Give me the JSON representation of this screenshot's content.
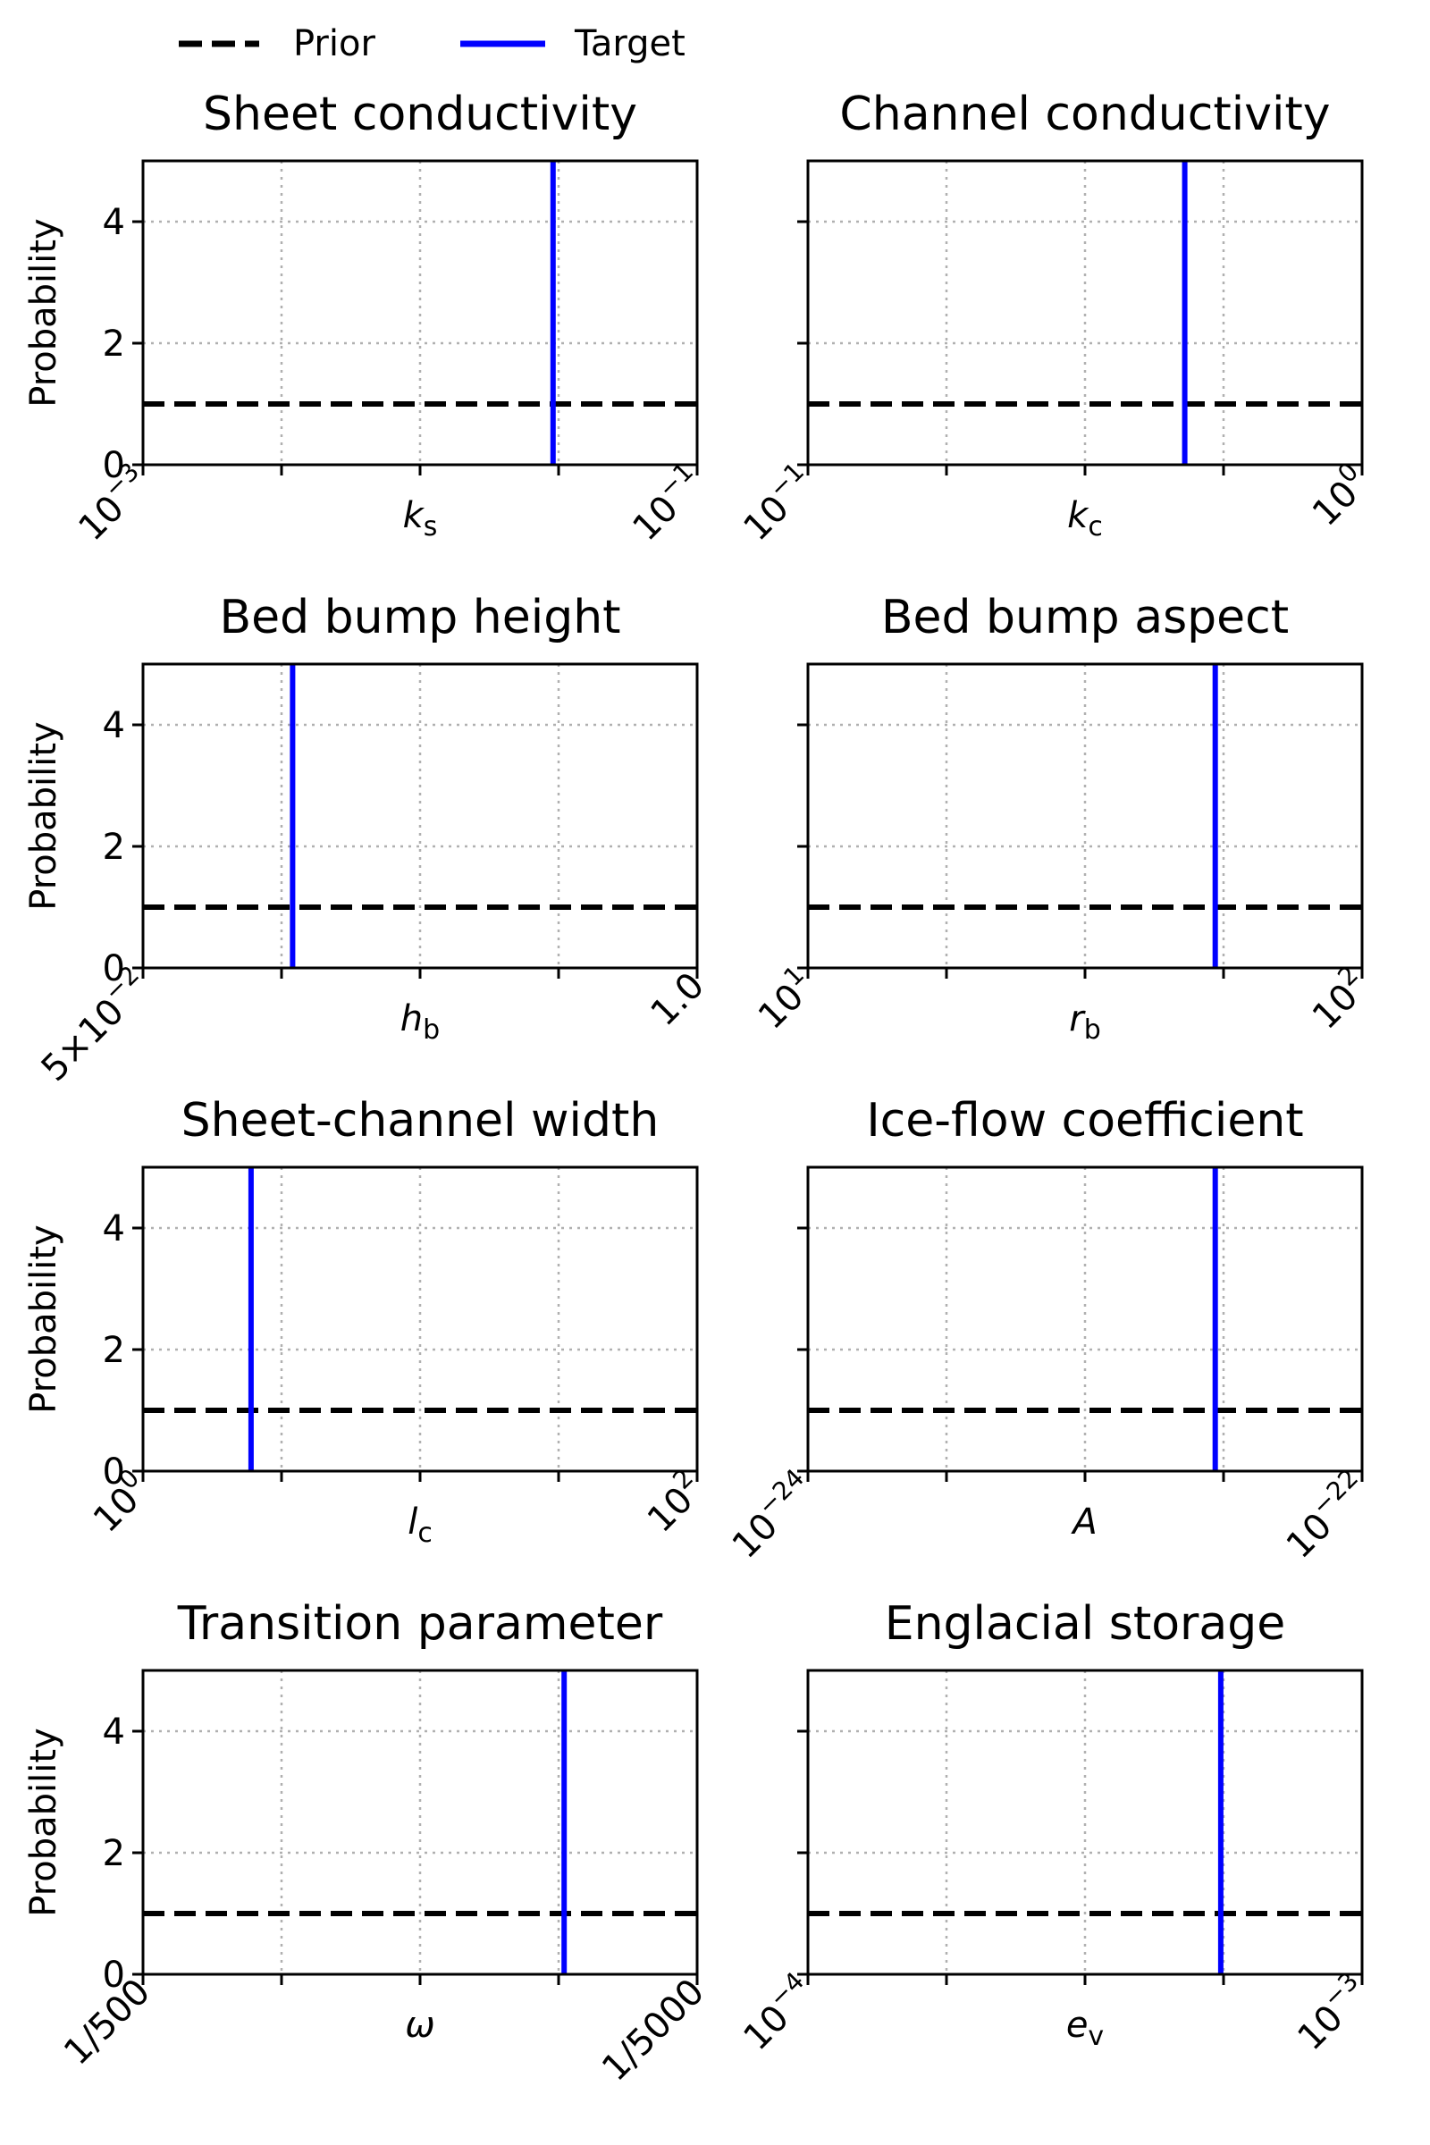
{
  "legend": {
    "items": [
      {
        "label": "Prior",
        "style": "dashed",
        "color": "#000000"
      },
      {
        "label": "Target",
        "style": "solid",
        "color": "#0000ff"
      }
    ]
  },
  "y_axis": {
    "label": "Probability",
    "ticks": [
      "0",
      "2",
      "4"
    ],
    "tick_values": [
      0,
      2,
      4
    ],
    "ylim": [
      0,
      5
    ]
  },
  "chart_data": [
    {
      "type": "line",
      "title": "Sheet conductivity",
      "xlabel_main": "k",
      "xlabel_sub": "s",
      "x_ticks": [
        {
          "base": "10",
          "exp": "−3"
        },
        {
          "base": "10",
          "exp": "−1"
        }
      ],
      "xlim": [
        0,
        1
      ],
      "grid_x": [
        0.25,
        0.5,
        0.75
      ],
      "prior_density": 1,
      "target_x": 0.74
    },
    {
      "type": "line",
      "title": "Channel conductivity",
      "xlabel_main": "k",
      "xlabel_sub": "c",
      "x_ticks": [
        {
          "base": "10",
          "exp": "−1"
        },
        {
          "base": "10",
          "exp": "0"
        }
      ],
      "xlim": [
        0,
        1
      ],
      "grid_x": [
        0.25,
        0.5,
        0.75
      ],
      "prior_density": 1,
      "target_x": 0.68
    },
    {
      "type": "line",
      "title": "Bed bump height",
      "xlabel_main": "h",
      "xlabel_sub": "b",
      "x_ticks": [
        {
          "base": "5×10",
          "exp": "−2"
        },
        {
          "base": "1.0",
          "exp": ""
        }
      ],
      "xlim": [
        0,
        1
      ],
      "grid_x": [
        0.25,
        0.5,
        0.75
      ],
      "prior_density": 1,
      "target_x": 0.27
    },
    {
      "type": "line",
      "title": "Bed bump aspect",
      "xlabel_main": "r",
      "xlabel_sub": "b",
      "x_ticks": [
        {
          "base": "10",
          "exp": "1"
        },
        {
          "base": "10",
          "exp": "2"
        }
      ],
      "xlim": [
        0,
        1
      ],
      "grid_x": [
        0.25,
        0.5,
        0.75
      ],
      "prior_density": 1,
      "target_x": 0.735
    },
    {
      "type": "line",
      "title": "Sheet-channel width",
      "xlabel_main": "l",
      "xlabel_sub": "c",
      "x_ticks": [
        {
          "base": "10",
          "exp": "0"
        },
        {
          "base": "10",
          "exp": "2"
        }
      ],
      "xlim": [
        0,
        1
      ],
      "grid_x": [
        0.25,
        0.5,
        0.75
      ],
      "prior_density": 1,
      "target_x": 0.195
    },
    {
      "type": "line",
      "title": "Ice-flow coefficient",
      "xlabel_main": "A",
      "xlabel_sub": "",
      "x_ticks": [
        {
          "base": "10",
          "exp": "−24"
        },
        {
          "base": "10",
          "exp": "−22"
        }
      ],
      "xlim": [
        0,
        1
      ],
      "grid_x": [
        0.25,
        0.5,
        0.75
      ],
      "prior_density": 1,
      "target_x": 0.735
    },
    {
      "type": "line",
      "title": "Transition parameter",
      "xlabel_main": "ω",
      "xlabel_sub": "",
      "x_ticks": [
        {
          "base": "1/500",
          "exp": ""
        },
        {
          "base": "1/5000",
          "exp": ""
        }
      ],
      "xlim": [
        0,
        1
      ],
      "grid_x": [
        0.25,
        0.5,
        0.75
      ],
      "prior_density": 1,
      "target_x": 0.76
    },
    {
      "type": "line",
      "title": "Englacial storage",
      "xlabel_main": "e",
      "xlabel_sub": "v",
      "x_ticks": [
        {
          "base": "10",
          "exp": "−4"
        },
        {
          "base": "10",
          "exp": "−3"
        }
      ],
      "xlim": [
        0,
        1
      ],
      "grid_x": [
        0.25,
        0.5,
        0.75
      ],
      "prior_density": 1,
      "target_x": 0.745
    }
  ]
}
